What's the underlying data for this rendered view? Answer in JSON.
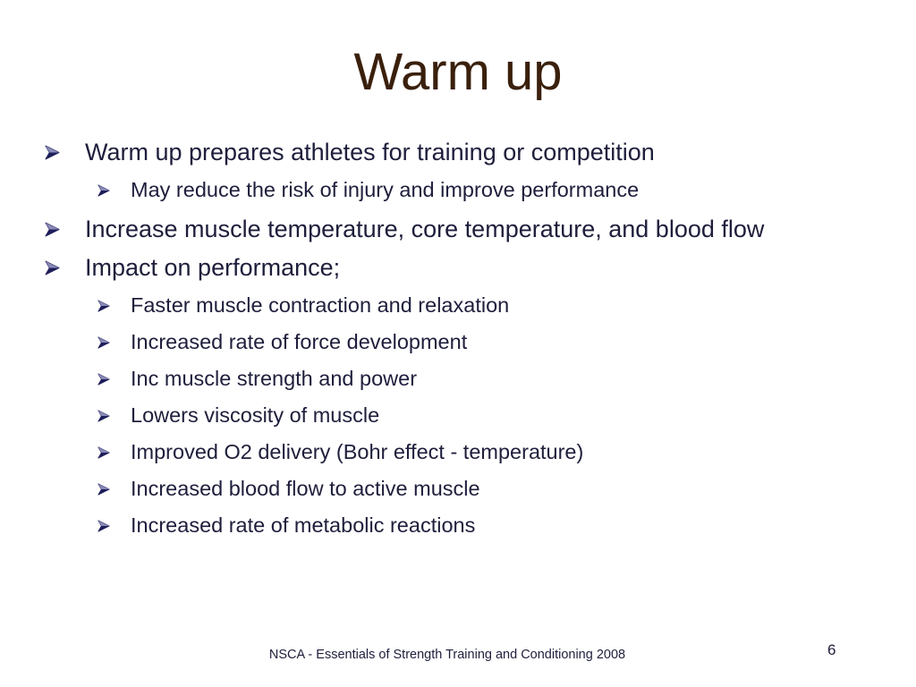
{
  "title": "Warm up",
  "bullets": [
    {
      "text": "Warm up prepares athletes for training or competition",
      "sub": [
        "May reduce the risk of injury and improve performance"
      ]
    },
    {
      "text": "Increase muscle temperature, core temperature, and blood flow",
      "sub": []
    },
    {
      "text": "Impact on performance;",
      "sub": [
        "Faster muscle contraction and relaxation",
        "Increased rate of force development",
        "Inc muscle strength and power",
        "Lowers viscosity of muscle",
        "Improved O2 delivery (Bohr effect - temperature)",
        "Increased blood flow to active muscle",
        "Increased rate of metabolic reactions"
      ]
    }
  ],
  "footer": "NSCA - Essentials of Strength Training and Conditioning 2008",
  "page_number": 6
}
